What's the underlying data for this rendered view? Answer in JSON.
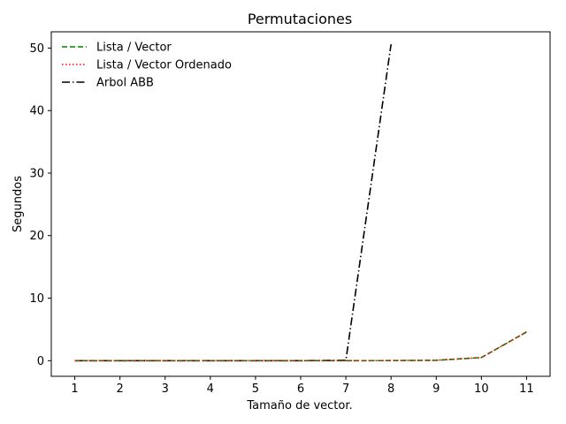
{
  "chart_data": {
    "type": "line",
    "title": "Permutaciones",
    "xlabel": "Tamaño de vector.",
    "ylabel": "Segundos",
    "xlim": [
      0.48,
      11.52
    ],
    "ylim": [
      -2.5,
      52.6
    ],
    "x_ticks": [
      1,
      2,
      3,
      4,
      5,
      6,
      7,
      8,
      9,
      10,
      11
    ],
    "y_ticks": [
      0,
      10,
      20,
      30,
      40,
      50
    ],
    "grid": false,
    "legend_position": "upper-left",
    "series": [
      {
        "name": "Lista / Vector",
        "color": "#008000",
        "style": "dashed",
        "x": [
          1,
          2,
          3,
          4,
          5,
          6,
          7,
          8,
          9,
          10,
          11
        ],
        "y": [
          0,
          0,
          0,
          0,
          0,
          0,
          0,
          0.01,
          0.06,
          0.5,
          4.6
        ]
      },
      {
        "name": "Lista / Vector Ordenado",
        "color": "#ff0000",
        "style": "dotted",
        "x": [
          1,
          2,
          3,
          4,
          5,
          6,
          7,
          8,
          9,
          10,
          11
        ],
        "y": [
          0,
          0,
          0,
          0,
          0,
          0,
          0,
          0.01,
          0.06,
          0.5,
          4.6
        ]
      },
      {
        "name": "Arbol ABB",
        "color": "#000000",
        "style": "dashdot",
        "x": [
          1,
          2,
          3,
          4,
          5,
          6,
          7,
          8
        ],
        "y": [
          0,
          0,
          0,
          0,
          0,
          0,
          0.06,
          50.6
        ]
      }
    ]
  }
}
